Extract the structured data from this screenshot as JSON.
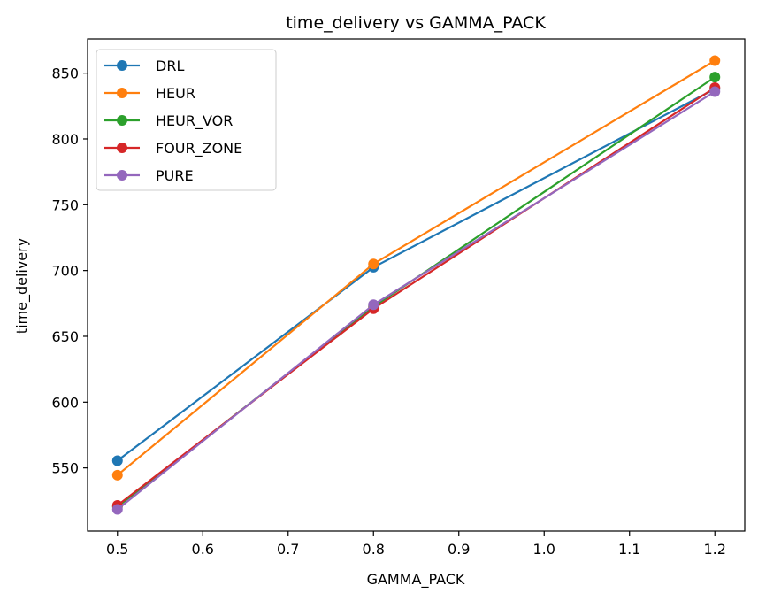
{
  "chart_data": {
    "type": "line",
    "title": "time_delivery vs GAMMA_PACK",
    "xlabel": "GAMMA_PACK",
    "ylabel": "time_delivery",
    "x": [
      0.5,
      0.8,
      1.2
    ],
    "xlim": [
      0.465,
      1.235
    ],
    "ylim": [
      502,
      876
    ],
    "xticks": [
      0.5,
      0.6,
      0.7,
      0.8,
      0.9,
      1.0,
      1.1,
      1.2
    ],
    "xtick_labels": [
      "0.5",
      "0.6",
      "0.7",
      "0.8",
      "0.9",
      "1.0",
      "1.1",
      "1.2"
    ],
    "yticks": [
      550,
      600,
      650,
      700,
      750,
      800,
      850
    ],
    "ytick_labels": [
      "550",
      "600",
      "650",
      "700",
      "750",
      "800",
      "850"
    ],
    "legend_position": "top-left",
    "series": [
      {
        "name": "DRL",
        "color": "#1f77b4",
        "values": [
          555.5,
          702.5,
          838.0
        ]
      },
      {
        "name": "HEUR",
        "color": "#ff7f0e",
        "values": [
          544.5,
          705.0,
          859.5
        ]
      },
      {
        "name": "HEUR_VOR",
        "color": "#2ca02c",
        "values": [
          520.5,
          672.5,
          847.0
        ]
      },
      {
        "name": "FOUR_ZONE",
        "color": "#d62728",
        "values": [
          521.5,
          671.0,
          839.0
        ]
      },
      {
        "name": "PURE",
        "color": "#9467bd",
        "values": [
          518.5,
          674.0,
          836.0
        ]
      }
    ]
  }
}
